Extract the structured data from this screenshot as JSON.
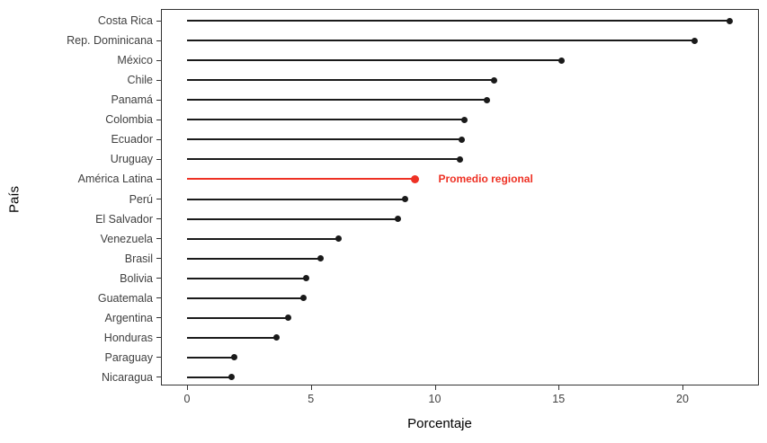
{
  "chart_data": {
    "type": "bar",
    "variant": "lollipop",
    "title": "",
    "xlabel": "Porcentaje",
    "ylabel": "País",
    "xlim": [
      -1,
      23.1
    ],
    "x_ticks": [
      "0",
      "5",
      "10",
      "15",
      "20"
    ],
    "x_tick_values": [
      0,
      5,
      10,
      15,
      20
    ],
    "grid": false,
    "legend": false,
    "categories": [
      "Costa Rica",
      "Rep. Dominicana",
      "México",
      "Chile",
      "Panamá",
      "Colombia",
      "Ecuador",
      "Uruguay",
      "América Latina",
      "Perú",
      "El Salvador",
      "Venezuela",
      "Brasil",
      "Bolivia",
      "Guatemala",
      "Argentina",
      "Honduras",
      "Paraguay",
      "Nicaragua"
    ],
    "values": [
      21.9,
      20.5,
      15.1,
      12.4,
      12.1,
      11.2,
      11.1,
      11.0,
      9.2,
      8.8,
      8.5,
      6.1,
      5.4,
      4.8,
      4.7,
      4.1,
      3.6,
      1.9,
      1.8
    ],
    "highlight": {
      "category": "América Latina",
      "value": 9.2,
      "annotation": "Promedio regional",
      "color": "#ee3124"
    },
    "colors": {
      "line": "#1a1a1a",
      "dot": "#1a1a1a",
      "panel_border": "#333333",
      "tick_label": "#404040",
      "axis_title": "#000000",
      "highlight": "#ee3124"
    }
  }
}
